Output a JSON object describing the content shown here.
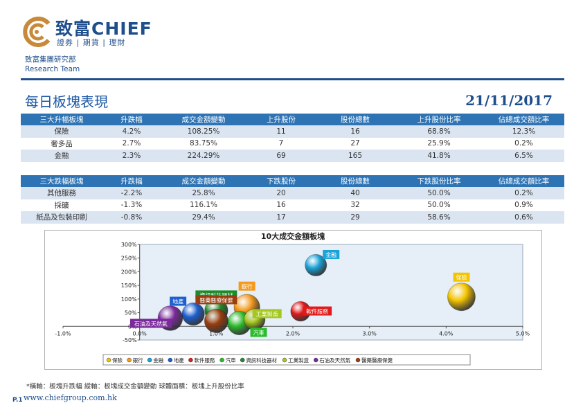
{
  "brand": {
    "name": "致富CHIEF",
    "tagline": "證券 | 期貨 | 理財",
    "dept_line1": "致富集團研究部",
    "dept_line2": "Research Team",
    "color": "#1f4e8c",
    "logo_gold": "#c8893a"
  },
  "page": {
    "title": "每日板塊表現",
    "date": "21/11/2017",
    "page_number": "P.1",
    "url": "www.chiefgroup.com.hk",
    "footnote": "*橫軸：板塊升跌幅      縱軸：板塊成交金額變動      球體面積：板塊上升股份比率"
  },
  "rise_table": {
    "headers": [
      "三大升幅板塊",
      "升跌幅",
      "成交金額變動",
      "上升股份",
      "股份總數",
      "上升股份比率",
      "佔總成交額比率"
    ],
    "rows": [
      [
        "保險",
        "4.2%",
        "108.25%",
        "11",
        "16",
        "68.8%",
        "12.3%"
      ],
      [
        "奢多品",
        "2.7%",
        "83.75%",
        "7",
        "27",
        "25.9%",
        "0.2%"
      ],
      [
        "金融",
        "2.3%",
        "224.29%",
        "69",
        "165",
        "41.8%",
        "6.5%"
      ]
    ]
  },
  "fall_table": {
    "headers": [
      "三大跌幅板塊",
      "升跌幅",
      "成交金額變動",
      "下跌股份",
      "股份總數",
      "下跌股份比率",
      "佔總成交額比率"
    ],
    "rows": [
      [
        "其他服務",
        "-2.2%",
        "25.8%",
        "20",
        "40",
        "50.0%",
        "0.2%"
      ],
      [
        "採礦",
        "-1.3%",
        "116.1%",
        "16",
        "32",
        "50.0%",
        "0.9%"
      ],
      [
        "紙品及包裝印刷",
        "-0.8%",
        "29.4%",
        "17",
        "29",
        "58.6%",
        "0.6%"
      ]
    ]
  },
  "chart_data": {
    "type": "scatter",
    "title": "10大成交金額板塊",
    "xlim": [
      -1.0,
      5.0
    ],
    "ylim": [
      -50,
      300
    ],
    "x_ticks": [
      "-1.0%",
      "0.0%",
      "1.0%",
      "2.0%",
      "3.0%",
      "4.0%",
      "5.0%"
    ],
    "y_ticks": [
      "-50%",
      "0%",
      "50%",
      "100%",
      "150%",
      "200%",
      "250%",
      "300%"
    ],
    "grid": false,
    "plot_background": "#e6eef7",
    "legend_position": "bottom",
    "series": [
      {
        "name": "保險",
        "x": 4.2,
        "y": 108,
        "size": 68.8,
        "color": "#f5c400",
        "show_label": true
      },
      {
        "name": "銀行",
        "x": 1.4,
        "y": 70,
        "size": 60,
        "color": "#f49a1c",
        "show_label": true
      },
      {
        "name": "金融",
        "x": 2.3,
        "y": 224,
        "size": 41.8,
        "color": "#1ba3d8",
        "show_label": true
      },
      {
        "name": "地產",
        "x": 0.7,
        "y": 45,
        "size": 45,
        "color": "#1b5fd0",
        "show_label": true
      },
      {
        "name": "軟件服務",
        "x": 2.1,
        "y": 55,
        "size": 35,
        "color": "#e21a1a",
        "show_label": true
      },
      {
        "name": "汽車",
        "x": 1.3,
        "y": 12,
        "size": 50,
        "color": "#2dbb2d",
        "show_label": true
      },
      {
        "name": "資訊科技器材",
        "x": 1.0,
        "y": 58,
        "size": 48,
        "color": "#1f8a2a",
        "show_label": true
      },
      {
        "name": "工業製造",
        "x": 1.5,
        "y": 25,
        "size": 40,
        "color": "#a5c81e",
        "show_label": true
      },
      {
        "name": "石油及天然氣",
        "x": 0.4,
        "y": 30,
        "size": 55,
        "color": "#7a2a9a",
        "show_label": true
      },
      {
        "name": "醫藥醫療保健",
        "x": 1.0,
        "y": 20,
        "size": 50,
        "color": "#9a3e10",
        "show_label": true
      }
    ]
  }
}
